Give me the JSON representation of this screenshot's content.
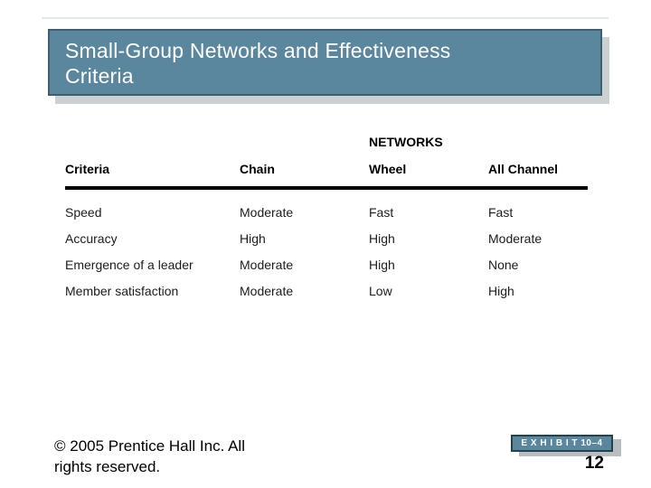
{
  "slide": {
    "title": "Small-Group Networks and Effectiveness\nCriteria",
    "table": {
      "group_header": "NETWORKS",
      "columns": [
        "Criteria",
        "Chain",
        "Wheel",
        "All Channel"
      ],
      "rows": [
        [
          "Speed",
          "Moderate",
          "Fast",
          "Fast"
        ],
        [
          "Accuracy",
          "High",
          "High",
          "Moderate"
        ],
        [
          "Emergence of a leader",
          "Moderate",
          "High",
          "None"
        ],
        [
          "Member satisfaction",
          "Moderate",
          "Low",
          "High"
        ]
      ]
    },
    "footer": {
      "copyright": "© 2005 Prentice Hall Inc. All\nrights reserved.",
      "exhibit_label": "E X H I B I T 10–4",
      "page_number": "12"
    },
    "colors": {
      "accent_teal": "#5A869E",
      "title_border": "#3F5F70",
      "title_shadow": "#CBD0D3",
      "exhibit_border": "#24424D",
      "exhibit_shadow": "#B9BDC0"
    }
  }
}
